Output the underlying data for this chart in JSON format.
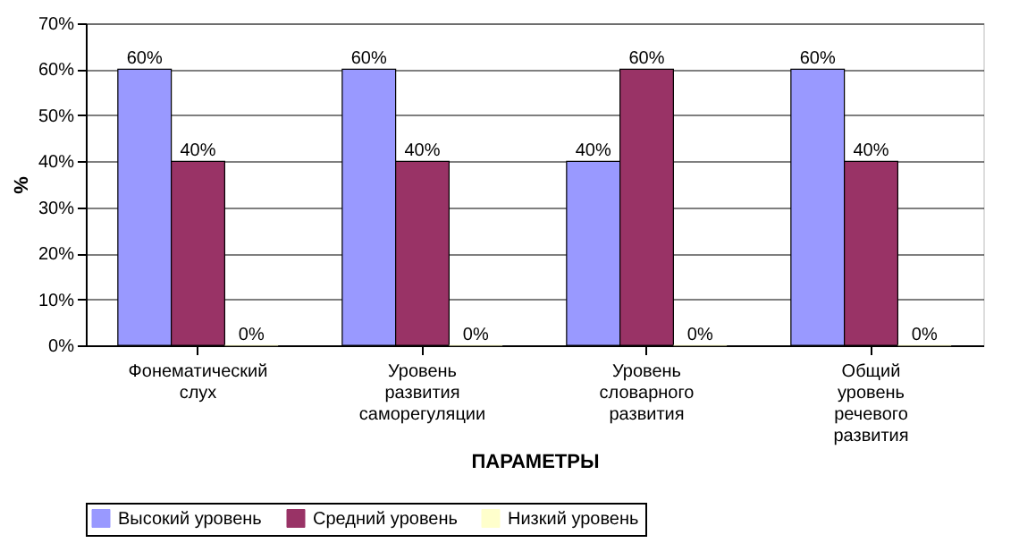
{
  "chart_data": {
    "type": "bar",
    "xlabel": "ПАРАМЕТРЫ",
    "ylabel": "%",
    "categories": [
      "Фонематический слух",
      "Уровень развития саморегуляции",
      "Уровень словарного развития",
      "Общий уровень речевого развития"
    ],
    "series": [
      {
        "name": "Высокий уровень",
        "color": "#9999ff",
        "values": [
          60,
          60,
          40,
          60
        ],
        "value_labels": [
          "60%",
          "60%",
          "40%",
          "60%"
        ]
      },
      {
        "name": "Средний уровень",
        "color": "#993366",
        "values": [
          40,
          40,
          60,
          40
        ],
        "value_labels": [
          "40%",
          "40%",
          "60%",
          "40%"
        ]
      },
      {
        "name": "Низкий уровень",
        "color": "#ffffcc",
        "values": [
          0,
          0,
          0,
          0
        ],
        "value_labels": [
          "0%",
          "0%",
          "0%",
          "0%"
        ]
      }
    ],
    "ylim": [
      0,
      70
    ],
    "yticks": [
      {
        "value": 0,
        "label": "0%"
      },
      {
        "value": 10,
        "label": "10%"
      },
      {
        "value": 20,
        "label": "20%"
      },
      {
        "value": 30,
        "label": "30%"
      },
      {
        "value": 40,
        "label": "40%"
      },
      {
        "value": 50,
        "label": "50%"
      },
      {
        "value": 60,
        "label": "60%"
      },
      {
        "value": 70,
        "label": "70%"
      }
    ],
    "grid": "y",
    "legend": "bottom"
  }
}
